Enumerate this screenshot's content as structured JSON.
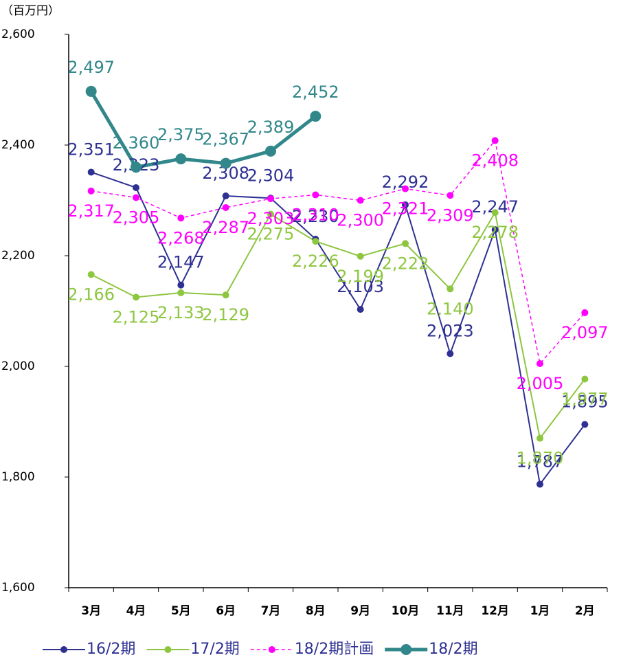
{
  "chart_data": {
    "type": "line",
    "y_label": "（百万円）",
    "categories": [
      "3月",
      "4月",
      "5月",
      "6月",
      "7月",
      "8月",
      "9月",
      "10月",
      "11月",
      "12月",
      "1月",
      "2月"
    ],
    "ylim": [
      1600,
      2600
    ],
    "yticks": [
      {
        "value": 1600,
        "label": "1,600"
      },
      {
        "value": 1800,
        "label": "1,800"
      },
      {
        "value": 2000,
        "label": "2,000"
      },
      {
        "value": 2200,
        "label": "2,200"
      },
      {
        "value": 2400,
        "label": "2,400"
      },
      {
        "value": 2600,
        "label": "2,600"
      }
    ],
    "grid": false,
    "legend": "bottom",
    "series": [
      {
        "name": "16/2期",
        "color": "#2e3192",
        "style": "solid",
        "values": [
          2351,
          2323,
          2147,
          2308,
          2304,
          2230,
          2103,
          2292,
          2023,
          2247,
          1787,
          1895
        ],
        "value_labels": [
          "2,351",
          "2,323",
          "2,147",
          "2,308",
          "2,304",
          "2,230",
          "2,103",
          "2,292",
          "2,023",
          "2,247",
          "1,787",
          "1,895"
        ]
      },
      {
        "name": "17/2期",
        "color": "#8dc63f",
        "style": "solid",
        "values": [
          2166,
          2125,
          2133,
          2129,
          2275,
          2226,
          2199,
          2222,
          2140,
          2278,
          1870,
          1977
        ],
        "value_labels": [
          "2,166",
          "2,125",
          "2,133",
          "2,129",
          "2,275",
          "2,226",
          "2,199",
          "2,222",
          "2,140",
          "2,278",
          "1,870",
          "1,977"
        ]
      },
      {
        "name": "18/2期計画",
        "color": "#ff00ff",
        "style": "dashed",
        "values": [
          2317,
          2305,
          2268,
          2287,
          2303,
          2310,
          2300,
          2321,
          2309,
          2408,
          2005,
          2097
        ],
        "value_labels": [
          "2,317",
          "2,305",
          "2,268",
          "2,287",
          "2,303",
          "2,310",
          "2,300",
          "2,321",
          "2,309",
          "2,408",
          "2,005",
          "2,097"
        ]
      },
      {
        "name": "18/2期",
        "color": "#31878a",
        "style": "bold",
        "values": [
          2497,
          2360,
          2375,
          2367,
          2389,
          2452,
          null,
          null,
          null,
          null,
          null,
          null
        ],
        "value_labels": [
          "2,497",
          "2,360",
          "2,375",
          "2,367",
          "2,389",
          "2,452",
          null,
          null,
          null,
          null,
          null,
          null
        ]
      }
    ]
  }
}
